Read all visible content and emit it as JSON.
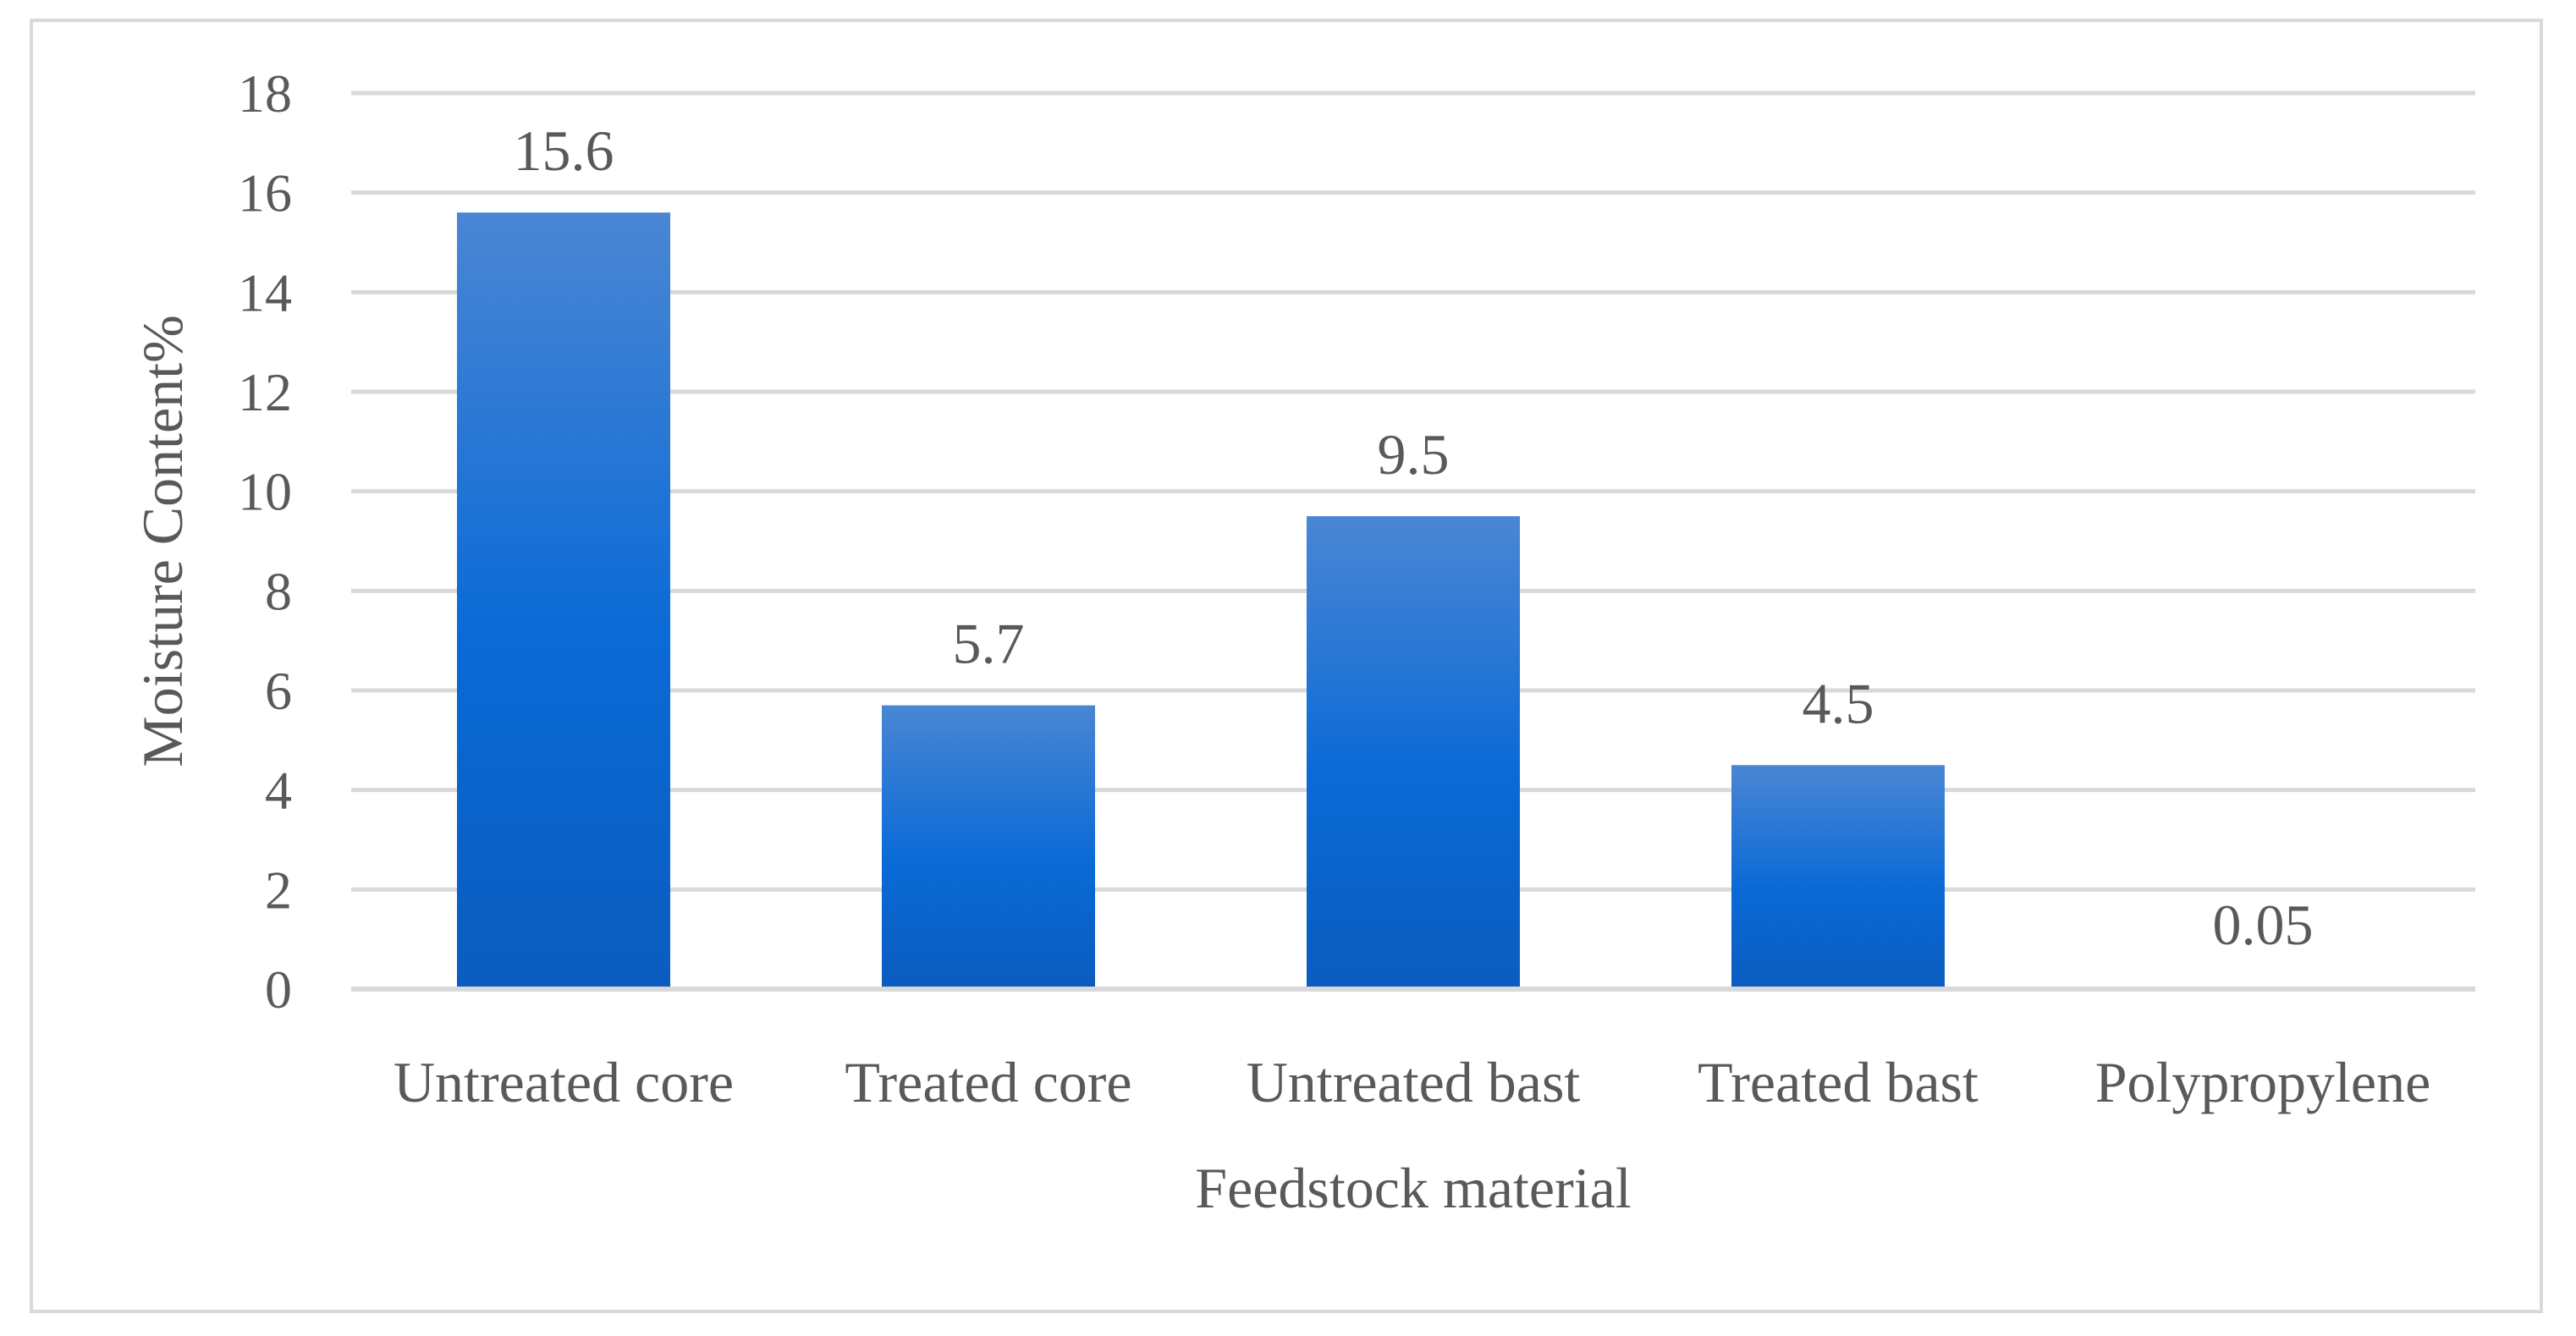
{
  "chart_data": {
    "type": "bar",
    "title": "",
    "xlabel": "Feedstock material",
    "ylabel": "Moisture Content%",
    "categories": [
      "Untreated core",
      "Treated core",
      "Untreated bast",
      "Treated bast",
      "Polypropylene"
    ],
    "values": [
      15.6,
      5.7,
      9.5,
      4.5,
      0.05
    ],
    "data_labels": [
      "15.6",
      "5.7",
      "9.5",
      "4.5",
      "0.05"
    ],
    "ylim": [
      0,
      18
    ],
    "yticks": [
      0,
      2,
      4,
      6,
      8,
      10,
      12,
      14,
      16,
      18
    ],
    "grid": true,
    "legend": "none",
    "colors": {
      "bar_top": "#4a86d4",
      "bar_mid": "#0a6ad6",
      "bar_bottom": "#0b5cbf",
      "grid": "#d9d9d9",
      "text": "#595959",
      "frame": "#d9d9d9"
    }
  }
}
